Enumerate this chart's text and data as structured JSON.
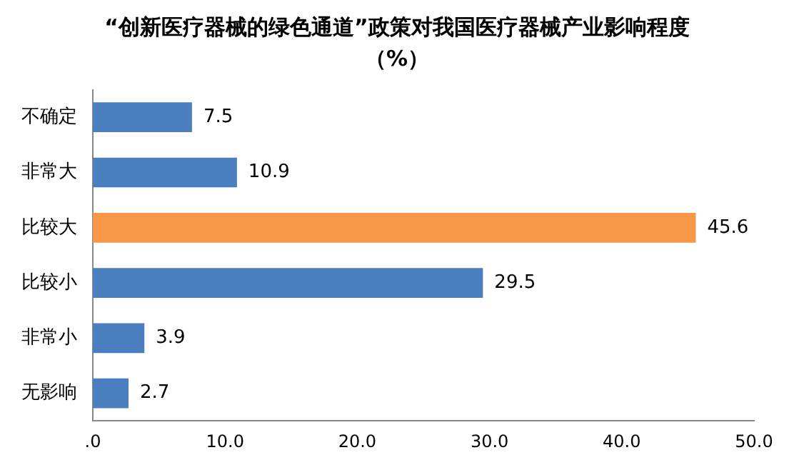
{
  "chart_data": {
    "type": "bar",
    "orientation": "horizontal",
    "title": "“创新医疗器械的绿色通道”政策对我国医疗器械产业影响程度（%）",
    "categories": [
      "不确定",
      "非常大",
      "比较大",
      "比较小",
      "非常小",
      "无影响"
    ],
    "values": [
      7.5,
      10.9,
      45.6,
      29.5,
      3.9,
      2.7
    ],
    "colors": [
      "#4a7ebf",
      "#4a7ebf",
      "#f79646",
      "#4a7ebf",
      "#4a7ebf",
      "#4a7ebf"
    ],
    "xlim": [
      0,
      50
    ],
    "xticks": [
      {
        "value": 0,
        "label": ".0"
      },
      {
        "value": 10,
        "label": "10.0"
      },
      {
        "value": 20,
        "label": "20.0"
      },
      {
        "value": 30,
        "label": "30.0"
      },
      {
        "value": 40,
        "label": "40.0"
      },
      {
        "value": 50,
        "label": "50.0"
      }
    ],
    "data_labels": true,
    "grid": false,
    "legend": false
  }
}
